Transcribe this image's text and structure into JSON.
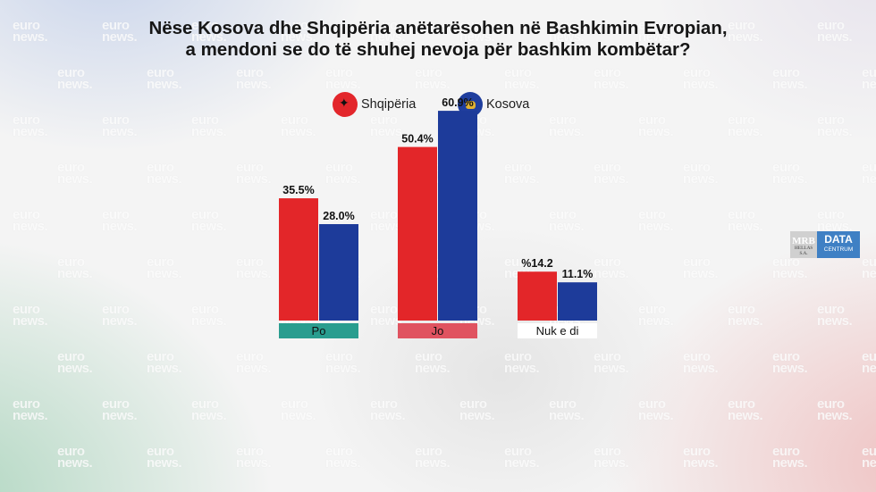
{
  "title_line1": "Nëse Kosova dhe Shqipëria anëtarësohen në Bashkimin Evropian,",
  "title_line2": "a mendoni se do të shuhej nevoja për bashkim kombëtar?",
  "watermark": "euro news.",
  "logo": {
    "mrb": "MRB",
    "mrb_sub": "HELLAS S.A.",
    "data": "DATA",
    "centrum": "CENTRUM"
  },
  "colors": {
    "shqiperia": "#e32629",
    "kosova": "#1d3b9a",
    "po": "#2a9d8f",
    "jo": "#e05360",
    "nuk": "#ffffff"
  },
  "chart_data": {
    "type": "bar",
    "title": "Nëse Kosova dhe Shqipëria anëtarësohen në Bashkimin Evropian, a mendoni se do të shuhej nevoja për bashkim kombëtar?",
    "categories": [
      "Po",
      "Jo",
      "Nuk e di"
    ],
    "series": [
      {
        "name": "Shqipëria",
        "values": [
          35.5,
          50.4,
          14.2
        ],
        "labels": [
          "35.5%",
          "50.4%",
          "%14.2"
        ]
      },
      {
        "name": "Kosova",
        "values": [
          28.0,
          60.9,
          11.1
        ],
        "labels": [
          "28.0%",
          "60.9%",
          "11.1%"
        ]
      }
    ],
    "xlabel": "",
    "ylabel": "",
    "ylim": [
      0,
      70
    ],
    "grid": false,
    "legend": "top"
  }
}
